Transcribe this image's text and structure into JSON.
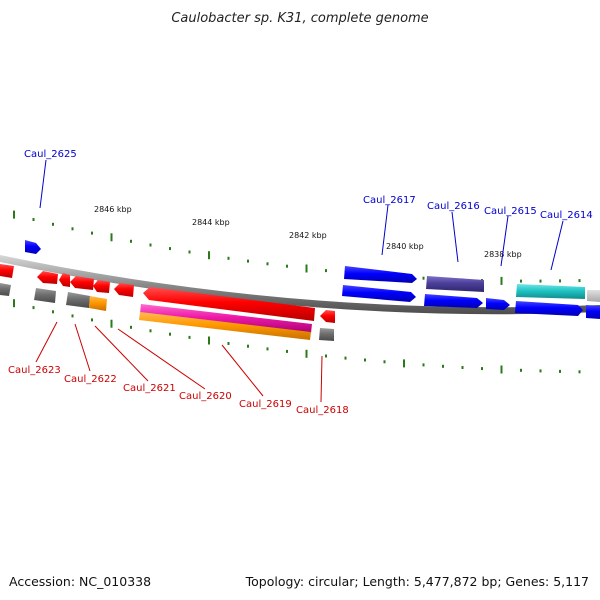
{
  "title": "Caulobacter sp. K31, complete genome",
  "footer": {
    "accession": "Accession: NC_010338",
    "summary": "Topology: circular; Length: 5,477,872 bp; Genes: 5,117"
  },
  "colors": {
    "forward_label": "#0000cc",
    "reverse_label": "#cc0000",
    "backbone": "#777777",
    "tick": "#2a7a1a"
  },
  "ticks": [
    "2846 kbp",
    "2844 kbp",
    "2842 kbp",
    "2840 kbp",
    "2838 kbp"
  ],
  "genes": {
    "forward": [
      "Caul_2625",
      "Caul_2617",
      "Caul_2616",
      "Caul_2615",
      "Caul_2614"
    ],
    "reverse": [
      "Caul_2623",
      "Caul_2622",
      "Caul_2621",
      "Caul_2620",
      "Caul_2619",
      "Caul_2618"
    ]
  }
}
